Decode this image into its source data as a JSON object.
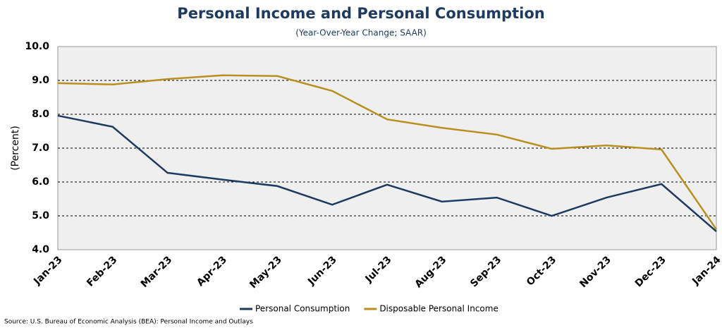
{
  "chart_data": {
    "type": "line",
    "title": "Personal Income and Personal Consumption",
    "subtitle": "(Year-Over-Year Change; SAAR)",
    "y_label": "(Percent)",
    "source": "Source: U.S. Bureau of Economic Analysis (BEA): Personal Income and Outlays",
    "categories": [
      "Jan-23",
      "Feb-23",
      "Mar-23",
      "Apr-23",
      "May-23",
      "Jun-23",
      "Jul-23",
      "Aug-23",
      "Sep-23",
      "Oct-23",
      "Nov-23",
      "Dec-23",
      "Jan-24"
    ],
    "series": [
      {
        "name": "Personal Consumption",
        "color": "#1f3a5f",
        "values": [
          7.96,
          7.63,
          6.27,
          6.07,
          5.88,
          5.33,
          5.92,
          5.42,
          5.54,
          5.0,
          5.54,
          5.94,
          4.54
        ]
      },
      {
        "name": "Disposable Personal Income",
        "color": "#b8901f",
        "values": [
          8.92,
          8.88,
          9.04,
          9.15,
          9.13,
          8.69,
          7.85,
          7.6,
          7.4,
          6.98,
          7.08,
          6.96,
          4.6
        ]
      }
    ],
    "ylim": [
      4,
      10
    ],
    "yticks": [
      {
        "value": 4,
        "label": "4.0"
      },
      {
        "value": 5,
        "label": "5.0"
      },
      {
        "value": 6,
        "label": "6.0"
      },
      {
        "value": 7,
        "label": "7.0"
      },
      {
        "value": 8,
        "label": "8.0"
      },
      {
        "value": 9,
        "label": "9.0"
      },
      {
        "value": 10,
        "label": "10.0"
      }
    ],
    "grid": true,
    "legend": "bottom"
  }
}
